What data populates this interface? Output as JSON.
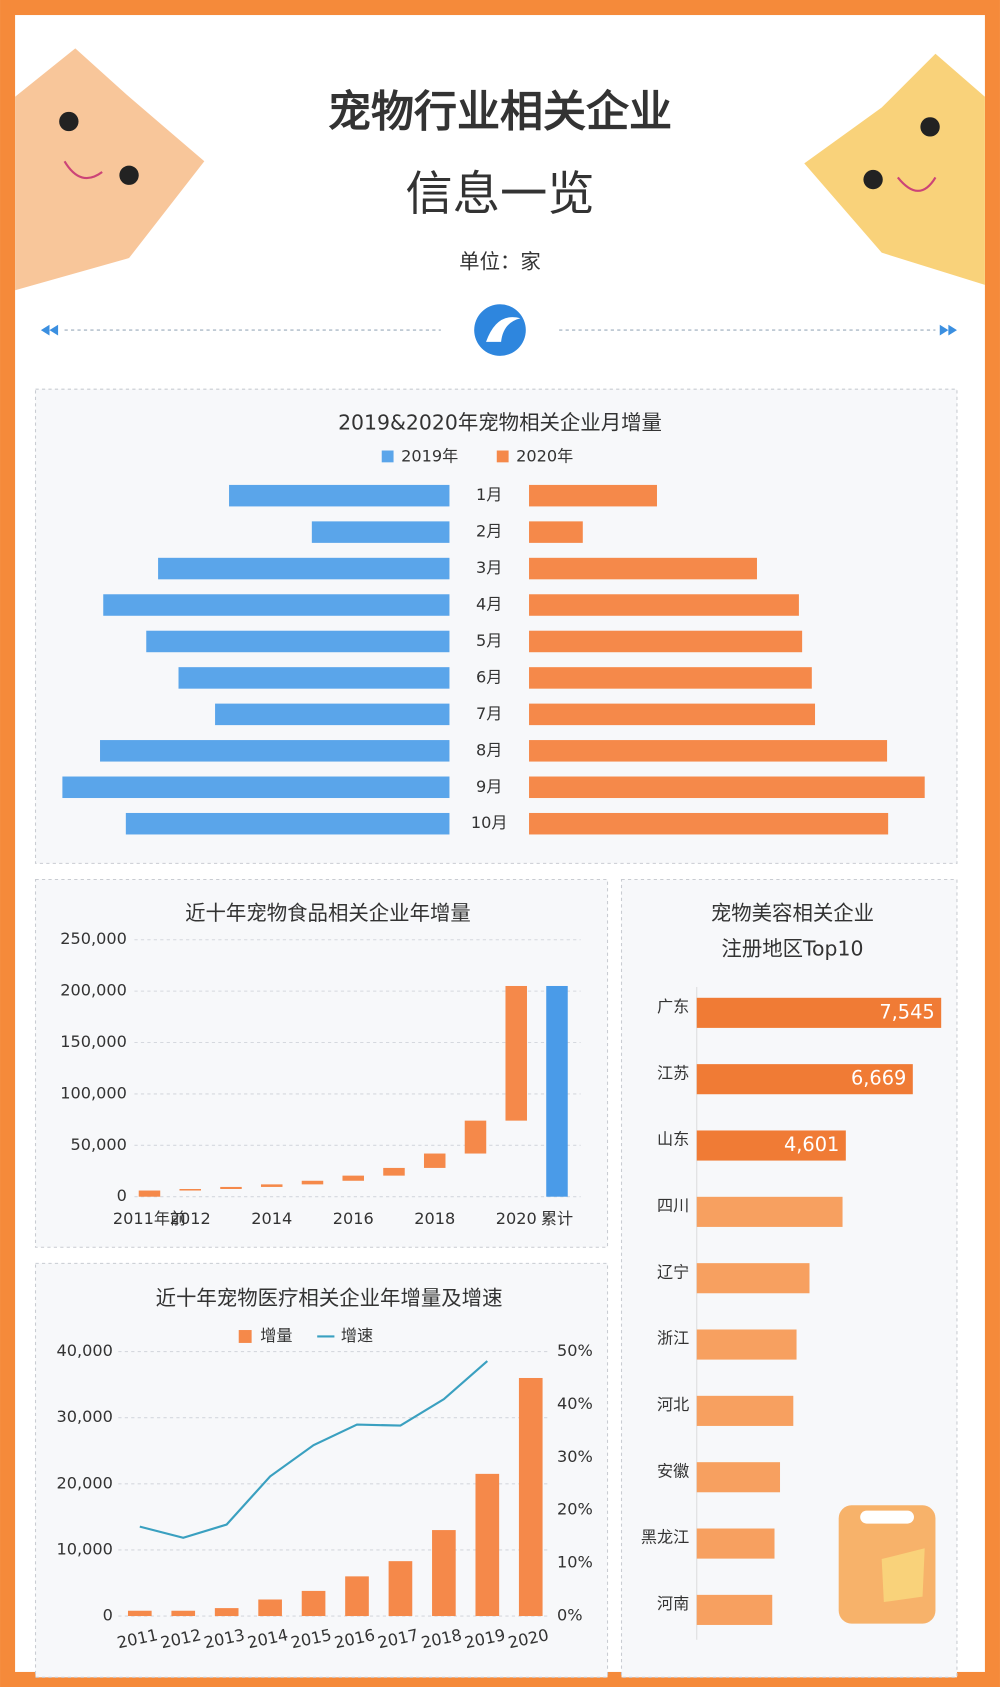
{
  "header": {
    "title": "宠物行业相关企业",
    "subtitle": "信息一览",
    "unit": "单位：家"
  },
  "chart_data": [
    {
      "type": "butterfly",
      "title": "2019&2020年宠物相关企业月增量",
      "categories": [
        "1月",
        "2月",
        "3月",
        "4月",
        "5月",
        "6月",
        "7月",
        "8月",
        "9月",
        "10月"
      ],
      "series": [
        {
          "name": "2019年",
          "color": "#5aa5ea",
          "values": [
            205,
            128,
            271,
            322,
            282,
            252,
            218,
            325,
            360,
            301
          ]
        },
        {
          "name": "2020年",
          "color": "#f5894a",
          "values": [
            119,
            50,
            212,
            251,
            254,
            263,
            266,
            333,
            368,
            334
          ]
        }
      ],
      "xlim": [
        0,
        370
      ]
    },
    {
      "type": "waterfall",
      "title": "近十年宠物食品相关企业年增量",
      "categories": [
        "2011年前",
        "2012",
        null,
        "2014",
        null,
        "2016",
        null,
        "2018",
        null,
        "2020"
      ],
      "values": [
        6000,
        1500,
        2000,
        2500,
        3500,
        5000,
        7500,
        14000,
        32000,
        131000
      ],
      "color": "#f5894a",
      "total_label": "累计",
      "total_value": 205000,
      "total_color": "#4a9be8",
      "ylim": [
        0,
        250000
      ],
      "yticks": [
        0,
        {
          "value": 50000,
          "label": "50,000"
        },
        {
          "value": 100000,
          "label": "100,000"
        },
        {
          "value": 150000,
          "label": "150,000"
        },
        {
          "value": 200000,
          "label": "200,000"
        },
        {
          "value": 250000,
          "label": "250,000"
        }
      ],
      "grid": true
    },
    {
      "type": "combo",
      "title": "近十年宠物医疗相关企业年增量及增速",
      "categories": [
        "2011",
        "2012",
        "2013",
        "2014",
        "2015",
        "2016",
        "2017",
        "2018",
        "2019",
        "2020"
      ],
      "series": [
        {
          "name": "增量",
          "color": "#f5894a",
          "kind": "bar",
          "values": [
            800,
            800,
            1200,
            2500,
            3800,
            6000,
            8300,
            13000,
            21500,
            36000
          ]
        },
        {
          "name": "增速",
          "color": "#3aa0c0",
          "kind": "line",
          "axis": "y2",
          "values": [
            16.9,
            14.8,
            17.3,
            26.4,
            32.3,
            36.2,
            36,
            41,
            48.2,
            null
          ]
        }
      ],
      "ylim": [
        0,
        40000
      ],
      "yticks": [
        0,
        {
          "value": 10000,
          "label": "10,000"
        },
        {
          "value": 20000,
          "label": "20,000"
        },
        {
          "value": 30000,
          "label": "30,000"
        },
        {
          "value": 40000,
          "label": "40,000"
        }
      ],
      "y2lim": [
        0,
        50
      ],
      "y2ticks": [
        {
          "value": 0,
          "label": "0%"
        },
        {
          "value": 10,
          "label": "10%"
        },
        {
          "value": 20,
          "label": "20%"
        },
        {
          "value": 30,
          "label": "30%"
        },
        {
          "value": 40,
          "label": "40%"
        },
        {
          "value": 50,
          "label": "50%"
        }
      ],
      "grid": true
    },
    {
      "type": "hbar",
      "title": [
        "宠物美容相关企业",
        "注册地区Top10"
      ],
      "categories": [
        "广东",
        "江苏",
        "山东",
        "四川",
        "辽宁",
        "浙江",
        "河北",
        "安徽",
        "黑龙江",
        "河南"
      ],
      "values": [
        7545,
        6669,
        4601,
        4500,
        3480,
        3080,
        2980,
        2570,
        2400,
        2330
      ],
      "value_labels": [
        "7,545",
        "6,669",
        "4,601",
        null,
        null,
        null,
        null,
        null,
        null,
        null
      ],
      "colors": [
        "#f07b35",
        "#f07b35",
        "#f07b35",
        "#f7a060",
        "#f7a060",
        "#f7a060",
        "#f7a060",
        "#f7a060",
        "#f7a060",
        "#f7a060"
      ],
      "xlim": [
        0,
        7700
      ]
    }
  ]
}
